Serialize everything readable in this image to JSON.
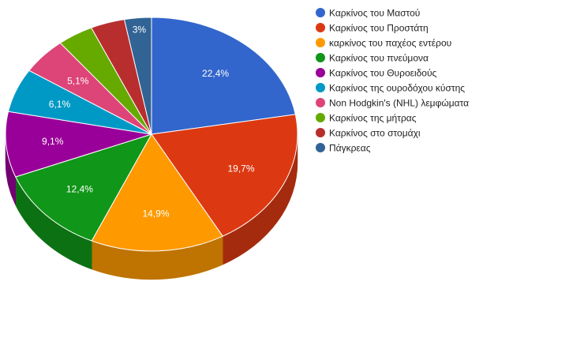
{
  "chart_data": {
    "type": "pie",
    "style": "3d",
    "start_angle_deg": 0,
    "direction": "clockwise",
    "legend_position": "right",
    "slices": [
      {
        "label": "Καρκίνος του Μαστού",
        "value": 22.4,
        "display": "22,4%",
        "color": "#3366cc",
        "side": "#26509f"
      },
      {
        "label": "Καρκίνος του Προστάτη",
        "value": 19.7,
        "display": "19,7%",
        "color": "#dc3912",
        "side": "#a52b0e"
      },
      {
        "label": "καρκίνος του παχέος εντέρου",
        "value": 14.9,
        "display": "14,9%",
        "color": "#ff9900",
        "side": "#bf7300"
      },
      {
        "label": "Καρκίνος του πνεύμονα",
        "value": 12.4,
        "display": "12,4%",
        "color": "#109618",
        "side": "#0c7112"
      },
      {
        "label": "Καρκίνος του Θυροειδούς",
        "value": 9.1,
        "display": "9,1%",
        "color": "#990099",
        "side": "#730073"
      },
      {
        "label": "Καρκίνος της ουροδόχου κύστης",
        "value": 6.1,
        "display": "6,1%",
        "color": "#0099c6",
        "side": "#007395"
      },
      {
        "label": "Non Hodgkin's (NHL) λεμφώματα",
        "value": 5.1,
        "display": "5,1%",
        "color": "#dd4477",
        "side": "#a63359"
      },
      {
        "label": "Καρκίνος της μήτρας",
        "value": 4.0,
        "display": "",
        "color": "#66aa00",
        "side": "#4d8000"
      },
      {
        "label": "Καρκίνος στο στομάχι",
        "value": 3.8,
        "display": "",
        "color": "#b82e2e",
        "side": "#8a2323"
      },
      {
        "label": "Πάγκρεας",
        "value": 3.0,
        "display": "3%",
        "color": "#316395",
        "side": "#254a70"
      }
    ]
  }
}
